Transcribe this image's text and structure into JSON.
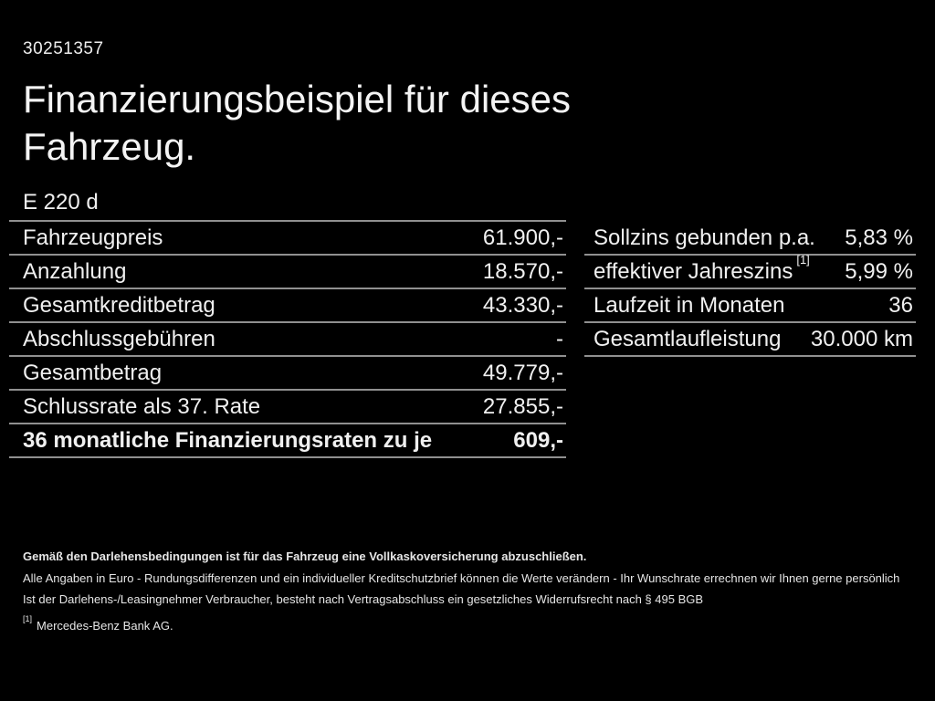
{
  "page": {
    "id_number": "30251357",
    "title": "Finanzierungsbeispiel für dieses Fahrzeug.",
    "model": "E 220 d"
  },
  "left_table": {
    "rows": [
      {
        "label": "Fahrzeugpreis",
        "value": "61.900,-",
        "bold": false
      },
      {
        "label": "Anzahlung",
        "value": "18.570,-",
        "bold": false
      },
      {
        "label": "Gesamtkreditbetrag",
        "value": "43.330,-",
        "bold": false
      },
      {
        "label": "Abschlussgebühren",
        "value": "-",
        "bold": false
      },
      {
        "label": "Gesamtbetrag",
        "value": "49.779,-",
        "bold": false
      },
      {
        "label": "Schlussrate als 37. Rate",
        "value": "27.855,-",
        "bold": false
      },
      {
        "label": "36 monatliche Finanzierungsraten zu je",
        "value": "609,-",
        "bold": true
      }
    ]
  },
  "right_table": {
    "rows": [
      {
        "label": "Sollzins gebunden p.a.",
        "value": "5,83 %",
        "bold": false
      },
      {
        "label": "effektiver Jahreszins",
        "superscript": "[1]",
        "value": "5,99 %",
        "bold": false
      },
      {
        "label": "Laufzeit in Monaten",
        "value": "36",
        "bold": false
      },
      {
        "label": "Gesamtlaufleistung",
        "value": "30.000 km",
        "bold": false
      }
    ]
  },
  "footer": {
    "insurance_note": "Gemäß den Darlehensbedingungen ist für das Fahrzeug eine Vollkaskoversicherung abzuschließen.",
    "disclaimer_line1": "Alle Angaben in Euro - Rundungsdifferenzen und ein individueller Kreditschutzbrief können die Werte verändern - Ihr Wunschrate errechnen wir Ihnen gerne persönlich",
    "disclaimer_line2": "Ist der Darlehens-/Leasingnehmer Verbraucher, besteht nach Vertragsabschluss ein gesetzliches Widerrufsrecht nach § 495 BGB",
    "footnote_marker": "[1]",
    "footnote_text": "Mercedes-Benz Bank AG."
  },
  "colors": {
    "background": "#000000",
    "text": "#f0f0f0",
    "divider": "#909090"
  }
}
